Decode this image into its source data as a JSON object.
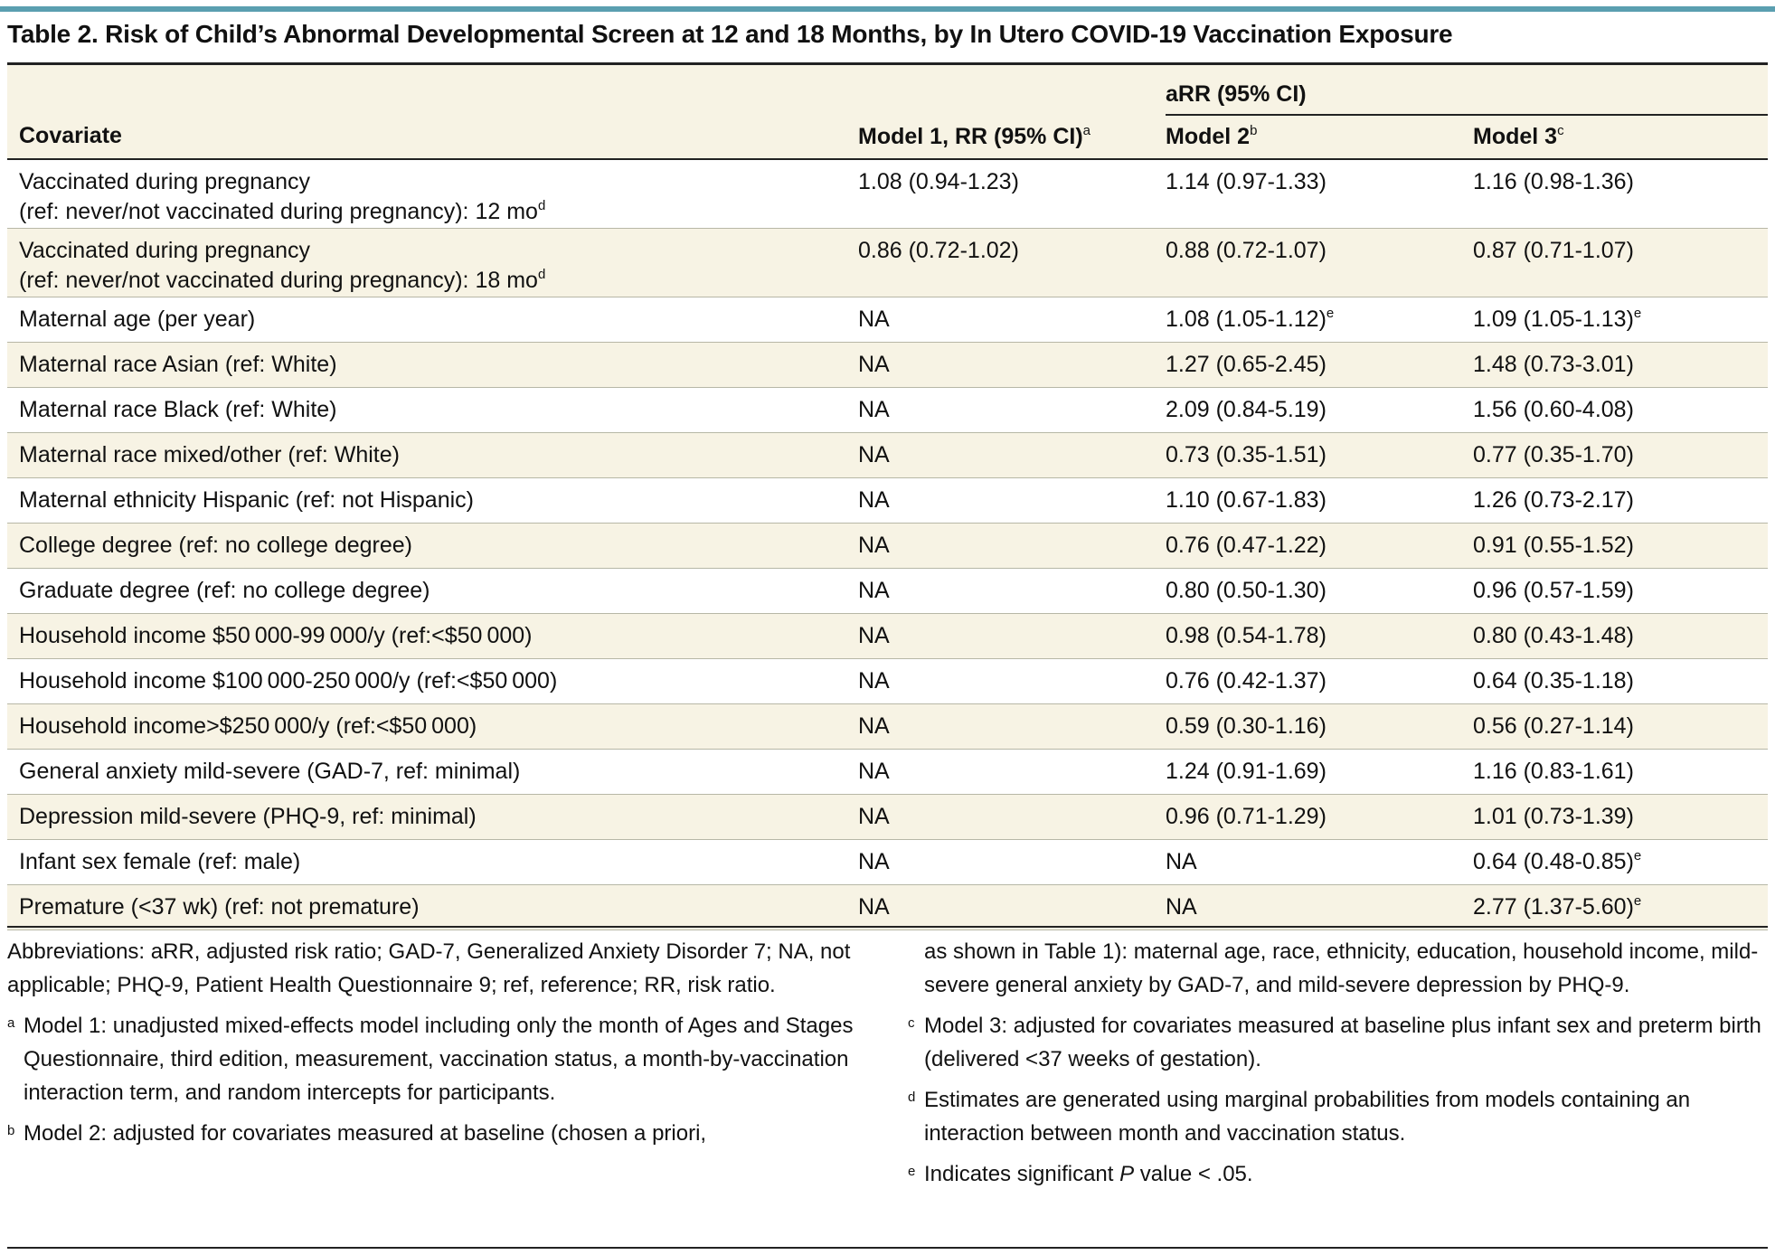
{
  "title": "Table 2. Risk of Child’s Abnormal Developmental Screen at 12 and 18 Months, by In Utero COVID-19 Vaccination Exposure",
  "header": {
    "group_label": "aRR (95% CI)",
    "covariate": "Covariate",
    "model1": "Model 1, RR (95% CI)",
    "model1_sup": "a",
    "model2": "Model 2",
    "model2_sup": "b",
    "model3": "Model 3",
    "model3_sup": "c"
  },
  "rows": [
    {
      "covariate": "Vaccinated during pregnancy",
      "covariate_line2": "(ref: never/not vaccinated during pregnancy): 12 mo",
      "covariate_sup": "d",
      "m1": "1.08 (0.94-1.23)",
      "m2": "1.14 (0.97-1.33)",
      "m2_sup": "",
      "m3": "1.16 (0.98-1.36)",
      "m3_sup": ""
    },
    {
      "covariate": "Vaccinated during pregnancy",
      "covariate_line2": "(ref: never/not vaccinated during pregnancy): 18 mo",
      "covariate_sup": "d",
      "m1": "0.86 (0.72-1.02)",
      "m2": "0.88 (0.72-1.07)",
      "m2_sup": "",
      "m3": "0.87 (0.71-1.07)",
      "m3_sup": ""
    },
    {
      "covariate": "Maternal age (per year)",
      "m1": "NA",
      "m2": "1.08 (1.05-1.12)",
      "m2_sup": "e",
      "m3": "1.09 (1.05-1.13)",
      "m3_sup": "e"
    },
    {
      "covariate": "Maternal race Asian (ref: White)",
      "m1": "NA",
      "m2": "1.27 (0.65-2.45)",
      "m2_sup": "",
      "m3": "1.48 (0.73-3.01)",
      "m3_sup": ""
    },
    {
      "covariate": "Maternal race Black (ref: White)",
      "m1": "NA",
      "m2": "2.09 (0.84-5.19)",
      "m2_sup": "",
      "m3": "1.56 (0.60-4.08)",
      "m3_sup": ""
    },
    {
      "covariate": "Maternal race mixed/other (ref: White)",
      "m1": "NA",
      "m2": "0.73 (0.35-1.51)",
      "m2_sup": "",
      "m3": "0.77 (0.35-1.70)",
      "m3_sup": ""
    },
    {
      "covariate": "Maternal ethnicity Hispanic (ref: not Hispanic)",
      "m1": "NA",
      "m2": "1.10 (0.67-1.83)",
      "m2_sup": "",
      "m3": "1.26 (0.73-2.17)",
      "m3_sup": ""
    },
    {
      "covariate": "College degree (ref: no college degree)",
      "m1": "NA",
      "m2": "0.76 (0.47-1.22)",
      "m2_sup": "",
      "m3": "0.91 (0.55-1.52)",
      "m3_sup": ""
    },
    {
      "covariate": "Graduate degree (ref: no college degree)",
      "m1": "NA",
      "m2": "0.80 (0.50-1.30)",
      "m2_sup": "",
      "m3": "0.96 (0.57-1.59)",
      "m3_sup": ""
    },
    {
      "covariate": "Household income $50 000-99 000/y (ref:<$50 000)",
      "m1": "NA",
      "m2": "0.98 (0.54-1.78)",
      "m2_sup": "",
      "m3": "0.80 (0.43-1.48)",
      "m3_sup": ""
    },
    {
      "covariate": "Household income $100 000-250 000/y (ref:<$50 000)",
      "m1": "NA",
      "m2": "0.76 (0.42-1.37)",
      "m2_sup": "",
      "m3": "0.64 (0.35-1.18)",
      "m3_sup": ""
    },
    {
      "covariate": "Household income>$250 000/y (ref:<$50 000)",
      "m1": "NA",
      "m2": "0.59 (0.30-1.16)",
      "m2_sup": "",
      "m3": "0.56 (0.27-1.14)",
      "m3_sup": ""
    },
    {
      "covariate": "General anxiety mild-severe (GAD-7, ref: minimal)",
      "m1": "NA",
      "m2": "1.24 (0.91-1.69)",
      "m2_sup": "",
      "m3": "1.16 (0.83-1.61)",
      "m3_sup": ""
    },
    {
      "covariate": "Depression mild-severe (PHQ-9, ref: minimal)",
      "m1": "NA",
      "m2": "0.96 (0.71-1.29)",
      "m2_sup": "",
      "m3": "1.01 (0.73-1.39)",
      "m3_sup": ""
    },
    {
      "covariate": "Infant sex female (ref: male)",
      "m1": "NA",
      "m2": "NA",
      "m2_sup": "",
      "m3": "0.64 (0.48-0.85)",
      "m3_sup": "e"
    },
    {
      "covariate": "Premature (<37 wk) (ref: not premature)",
      "m1": "NA",
      "m2": "NA",
      "m2_sup": "",
      "m3": "2.77 (1.37-5.60)",
      "m3_sup": "e"
    }
  ],
  "footnotes": {
    "abbreviations": "Abbreviations: aRR, adjusted risk ratio; GAD-7, Generalized Anxiety Disorder 7; NA, not applicable; PHQ-9, Patient Health Questionnaire 9; ref, reference; RR, risk ratio.",
    "a_mark": "a",
    "a_text": "Model 1: unadjusted mixed-effects model including only the month of Ages and Stages Questionnaire, third edition, measurement, vaccination status, a month-by-vaccination interaction term, and random intercepts for participants.",
    "b_mark": "b",
    "b_text": "Model 2: adjusted for covariates measured at baseline (chosen a priori,",
    "b_continued": "as shown in Table 1): maternal age, race, ethnicity, education, household income, mild-severe general anxiety by GAD-7, and mild-severe depression by PHQ-9.",
    "c_mark": "c",
    "c_text": "Model 3: adjusted for covariates measured at baseline plus infant sex and preterm birth (delivered <37 weeks of gestation).",
    "d_mark": "d",
    "d_text": "Estimates are generated using marginal probabilities from models containing an interaction between month and vaccination status.",
    "e_mark": "e",
    "e_prefix": "Indicates significant ",
    "e_italic": "P",
    "e_suffix": " value < .05."
  }
}
